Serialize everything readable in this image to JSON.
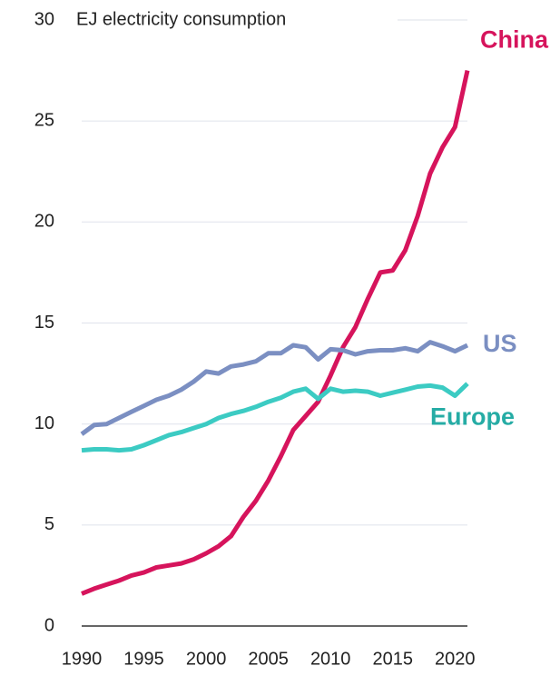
{
  "chart_data": {
    "type": "line",
    "y_label": "EJ electricity consumption",
    "x": [
      1990,
      1991,
      1992,
      1993,
      1994,
      1995,
      1996,
      1997,
      1998,
      1999,
      2000,
      2001,
      2002,
      2003,
      2004,
      2005,
      2006,
      2007,
      2008,
      2009,
      2010,
      2011,
      2012,
      2013,
      2014,
      2015,
      2016,
      2017,
      2018,
      2019,
      2020,
      2021
    ],
    "series": [
      {
        "name": "China",
        "color": "#d6145c",
        "values": [
          1.6,
          1.85,
          2.05,
          2.25,
          2.5,
          2.65,
          2.9,
          3.0,
          3.1,
          3.3,
          3.6,
          3.95,
          4.45,
          5.4,
          6.2,
          7.2,
          8.4,
          9.7,
          10.4,
          11.1,
          12.4,
          13.8,
          14.8,
          16.2,
          17.5,
          17.6,
          18.6,
          20.3,
          22.4,
          23.7,
          24.7,
          27.5
        ]
      },
      {
        "name": "US",
        "color": "#7b8fc2",
        "values": [
          9.5,
          9.95,
          10.0,
          10.3,
          10.6,
          10.9,
          11.2,
          11.4,
          11.7,
          12.1,
          12.6,
          12.5,
          12.85,
          12.95,
          13.1,
          13.5,
          13.5,
          13.9,
          13.8,
          13.2,
          13.7,
          13.65,
          13.45,
          13.6,
          13.65,
          13.65,
          13.75,
          13.6,
          14.05,
          13.85,
          13.6,
          13.9
        ]
      },
      {
        "name": "Europe",
        "color": "#3ccbc3",
        "values": [
          8.7,
          8.75,
          8.75,
          8.7,
          8.75,
          8.95,
          9.2,
          9.45,
          9.6,
          9.8,
          10.0,
          10.3,
          10.5,
          10.65,
          10.85,
          11.1,
          11.3,
          11.6,
          11.75,
          11.25,
          11.75,
          11.6,
          11.65,
          11.6,
          11.4,
          11.55,
          11.7,
          11.85,
          11.9,
          11.8,
          11.4,
          12.0
        ]
      }
    ],
    "xlim": [
      1990,
      2021
    ],
    "xticks": [
      1990,
      1995,
      2000,
      2005,
      2010,
      2015,
      2020
    ],
    "ylim": [
      0,
      30
    ],
    "yticks": [
      0,
      5,
      10,
      15,
      20,
      25,
      30
    ],
    "grid": true
  }
}
